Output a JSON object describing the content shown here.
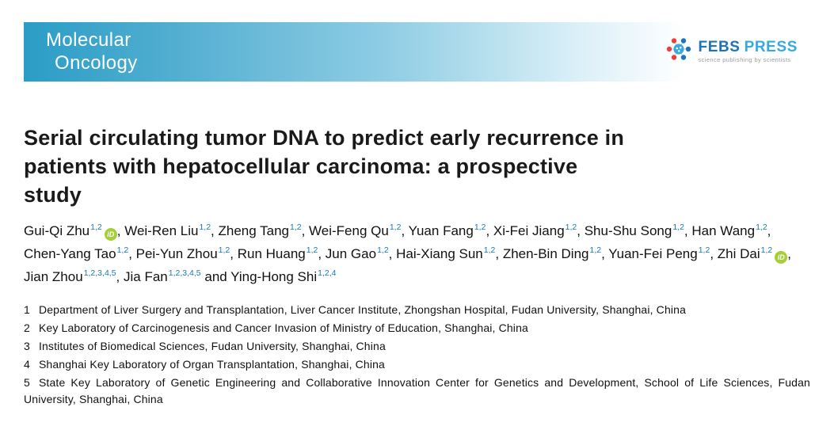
{
  "journal": {
    "name_line1": "Molecular",
    "name_line2": "Oncology",
    "publisher": {
      "name_primary": "FEBS",
      "name_secondary": "PRESS",
      "tagline": "science publishing by scientists"
    }
  },
  "article": {
    "title": "Serial circulating tumor DNA to predict early recurrence in patients with hepatocellular carcinoma: a prospective study",
    "title_lines": [
      "Serial circulating tumor DNA to predict early recurrence in",
      "patients with hepatocellular carcinoma: a prospective",
      "study"
    ],
    "and_label": "and",
    "authors": [
      {
        "name": "Gui-Qi Zhu",
        "sup": "1,2",
        "orcid": true
      },
      {
        "name": "Wei-Ren Liu",
        "sup": "1,2",
        "orcid": false
      },
      {
        "name": "Zheng Tang",
        "sup": "1,2",
        "orcid": false
      },
      {
        "name": "Wei-Feng Qu",
        "sup": "1,2",
        "orcid": false
      },
      {
        "name": "Yuan Fang",
        "sup": "1,2",
        "orcid": false
      },
      {
        "name": "Xi-Fei Jiang",
        "sup": "1,2",
        "orcid": false
      },
      {
        "name": "Shu-Shu Song",
        "sup": "1,2",
        "orcid": false
      },
      {
        "name": "Han Wang",
        "sup": "1,2",
        "orcid": false
      },
      {
        "name": "Chen-Yang Tao",
        "sup": "1,2",
        "orcid": false
      },
      {
        "name": "Pei-Yun Zhou",
        "sup": "1,2",
        "orcid": false
      },
      {
        "name": "Run Huang",
        "sup": "1,2",
        "orcid": false
      },
      {
        "name": "Jun Gao",
        "sup": "1,2",
        "orcid": false
      },
      {
        "name": "Hai-Xiang Sun",
        "sup": "1,2",
        "orcid": false
      },
      {
        "name": "Zhen-Bin Ding",
        "sup": "1,2",
        "orcid": false
      },
      {
        "name": "Yuan-Fei Peng",
        "sup": "1,2",
        "orcid": false
      },
      {
        "name": "Zhi Dai",
        "sup": "1,2",
        "orcid": true
      },
      {
        "name": "Jian Zhou",
        "sup": "1,2,3,4,5",
        "orcid": false
      },
      {
        "name": "Jia Fan",
        "sup": "1,2,3,4,5",
        "orcid": false
      },
      {
        "name": "Ying-Hong Shi",
        "sup": "1,2,4",
        "orcid": false
      }
    ],
    "affiliations": [
      {
        "number": "1",
        "text": "Department of Liver Surgery and Transplantation, Liver Cancer Institute, Zhongshan Hospital, Fudan University, Shanghai, China"
      },
      {
        "number": "2",
        "text": "Key Laboratory of Carcinogenesis and Cancer Invasion of Ministry of Education, Shanghai, China"
      },
      {
        "number": "3",
        "text": "Institutes of Biomedical Sciences, Fudan University, Shanghai, China"
      },
      {
        "number": "4",
        "text": "Shanghai Key Laboratory of Organ Transplantation, Shanghai, China"
      },
      {
        "number": "5",
        "text": "State Key Laboratory of Genetic Engineering and Collaborative Innovation Center for Genetics and Development, School of Life Sciences, Fudan University, Shanghai, China"
      }
    ]
  },
  "icons": {
    "orcid_label": "iD",
    "orcid_icon": "orcid-id-icon",
    "febs_icon": "febs-molecule-icon"
  },
  "colors": {
    "banner_teal": "#2b9dc6",
    "superscript_blue": "#1779ba",
    "orcid_green": "#a6ce39",
    "febs_blue": "#1c75bc",
    "press_blue": "#36a9e1",
    "tagline_gray": "#9b9b9b",
    "title_black": "#1a1a1a"
  }
}
